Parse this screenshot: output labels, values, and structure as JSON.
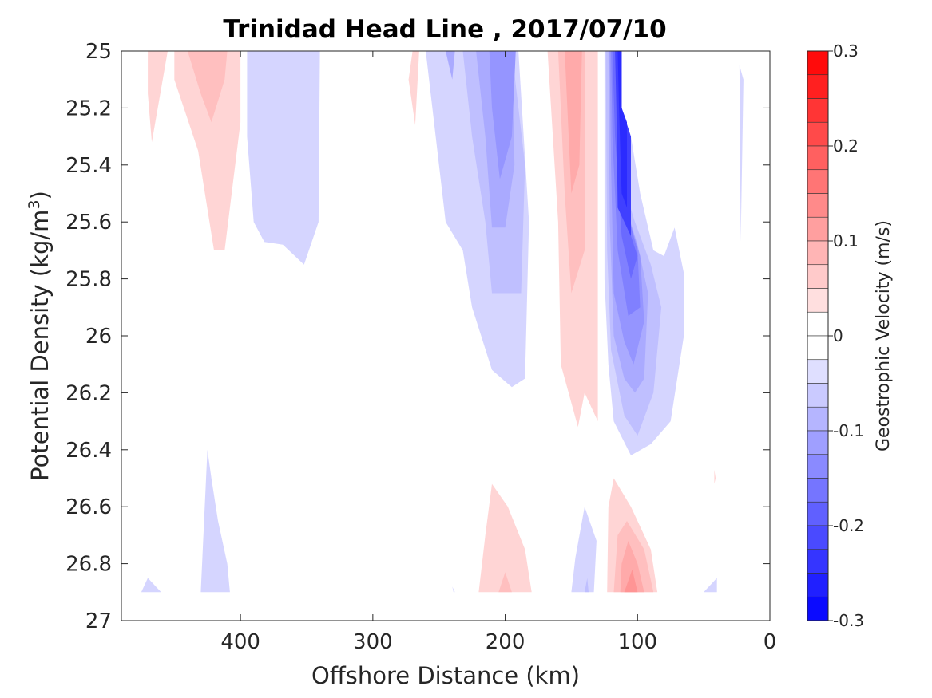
{
  "chart_data": {
    "type": "heatmap",
    "subtype": "filled-contour",
    "title": "Trinidad Head Line , 2017/07/10",
    "xlabel": "Offshore Distance (km)",
    "ylabel_main": "Potential Density (kg/m",
    "ylabel_sup": "3",
    "ylabel_tail": ")",
    "xlim": [
      490,
      0
    ],
    "x_reversed": true,
    "ylim": [
      25,
      27
    ],
    "y_reversed": true,
    "x_ticks": [
      400,
      300,
      200,
      100,
      0
    ],
    "x_tick_labels": [
      "400",
      "300",
      "200",
      "100",
      "0"
    ],
    "y_ticks": [
      25,
      25.2,
      25.4,
      25.6,
      25.8,
      26,
      26.2,
      26.4,
      26.6,
      26.8,
      27
    ],
    "y_tick_labels": [
      "25",
      "25.2",
      "25.4",
      "25.6",
      "25.8",
      "26",
      "26.2",
      "26.4",
      "26.6",
      "26.8",
      "27"
    ],
    "colorbar": {
      "label": "Geostrophic Velocity (m/s)",
      "min": -0.3,
      "max": 0.3,
      "levels": 24,
      "ticks": [
        0.3,
        0.2,
        0.1,
        0,
        -0.1,
        -0.2,
        -0.3
      ],
      "tick_labels": [
        "0.3",
        "0.2",
        "0.1",
        "0",
        "-0.1",
        "-0.2",
        "-0.3"
      ],
      "color_min": "#0000ff",
      "color_zero": "#ffffff",
      "color_max": "#ff0000"
    },
    "regions": [
      {
        "v": 0.05,
        "pts": [
          [
            470,
            25
          ],
          [
            455,
            25
          ],
          [
            467,
            25.32
          ],
          [
            470,
            25.15
          ]
        ]
      },
      {
        "v": 0.05,
        "pts": [
          [
            450,
            25
          ],
          [
            400,
            25
          ],
          [
            400,
            25.25
          ],
          [
            412,
            25.7
          ],
          [
            420,
            25.7
          ],
          [
            432,
            25.35
          ],
          [
            450,
            25.1
          ]
        ]
      },
      {
        "v": 0.075,
        "pts": [
          [
            440,
            25
          ],
          [
            410,
            25
          ],
          [
            412,
            25.1
          ],
          [
            422,
            25.25
          ],
          [
            430,
            25.15
          ]
        ]
      },
      {
        "v": 0.05,
        "pts": [
          [
            270,
            25
          ],
          [
            265,
            25
          ],
          [
            268,
            25.26
          ],
          [
            273,
            25.1
          ]
        ]
      },
      {
        "v": -0.05,
        "pts": [
          [
            395,
            25
          ],
          [
            340,
            25
          ],
          [
            341,
            25.6
          ],
          [
            352,
            25.75
          ],
          [
            368,
            25.68
          ],
          [
            382,
            25.67
          ],
          [
            390,
            25.6
          ],
          [
            395,
            25.3
          ]
        ]
      },
      {
        "v": -0.05,
        "pts": [
          [
            260,
            25
          ],
          [
            190,
            25
          ],
          [
            182,
            25.6
          ],
          [
            185,
            26.15
          ],
          [
            195,
            26.18
          ],
          [
            210,
            26.12
          ],
          [
            225,
            25.9
          ],
          [
            232,
            25.7
          ],
          [
            245,
            25.6
          ],
          [
            255,
            25.2
          ]
        ]
      },
      {
        "v": -0.075,
        "pts": [
          [
            232,
            25
          ],
          [
            195,
            25
          ],
          [
            185,
            25.4
          ],
          [
            188,
            25.85
          ],
          [
            210,
            25.85
          ],
          [
            215,
            25.6
          ],
          [
            225,
            25.3
          ]
        ]
      },
      {
        "v": -0.1,
        "pts": [
          [
            222,
            25
          ],
          [
            195,
            25
          ],
          [
            193,
            25.4
          ],
          [
            200,
            25.62
          ],
          [
            210,
            25.62
          ],
          [
            215,
            25.3
          ]
        ]
      },
      {
        "v": -0.125,
        "pts": [
          [
            212,
            25
          ],
          [
            192,
            25
          ],
          [
            195,
            25.3
          ],
          [
            204,
            25.45
          ],
          [
            210,
            25.2
          ]
        ]
      },
      {
        "v": -0.1,
        "pts": [
          [
            245,
            25
          ],
          [
            238,
            25
          ],
          [
            240,
            25.1
          ]
        ]
      },
      {
        "v": 0.05,
        "pts": [
          [
            168,
            25
          ],
          [
            130,
            25
          ],
          [
            130,
            26.3
          ],
          [
            140,
            26.2
          ],
          [
            145,
            26.32
          ],
          [
            158,
            26.1
          ],
          [
            160,
            25.6
          ]
        ]
      },
      {
        "v": 0.075,
        "pts": [
          [
            160,
            25
          ],
          [
            140,
            25
          ],
          [
            140,
            25.7
          ],
          [
            150,
            25.85
          ],
          [
            155,
            25.5
          ]
        ]
      },
      {
        "v": 0.1,
        "pts": [
          [
            155,
            25
          ],
          [
            142,
            25
          ],
          [
            144,
            25.4
          ],
          [
            150,
            25.5
          ]
        ]
      },
      {
        "v": -0.05,
        "pts": [
          [
            125,
            25
          ],
          [
            112,
            25
          ],
          [
            112,
            25.2
          ],
          [
            105,
            25.3
          ],
          [
            98,
            25.5
          ],
          [
            88,
            25.7
          ],
          [
            80,
            25.72
          ],
          [
            72,
            25.62
          ],
          [
            65,
            25.78
          ],
          [
            65,
            26
          ],
          [
            75,
            26.3
          ],
          [
            90,
            26.38
          ],
          [
            105,
            26.42
          ],
          [
            118,
            26.3
          ],
          [
            122,
            26.1
          ],
          [
            125,
            25.8
          ]
        ]
      },
      {
        "v": -0.075,
        "pts": [
          [
            124,
            25
          ],
          [
            113,
            25
          ],
          [
            112,
            25.45
          ],
          [
            102,
            25.6
          ],
          [
            90,
            25.75
          ],
          [
            82,
            25.9
          ],
          [
            88,
            26.2
          ],
          [
            100,
            26.35
          ],
          [
            110,
            26.28
          ],
          [
            120,
            26.05
          ],
          [
            123,
            25.7
          ]
        ]
      },
      {
        "v": -0.1,
        "pts": [
          [
            122,
            25
          ],
          [
            113,
            25
          ],
          [
            112,
            25.5
          ],
          [
            100,
            25.68
          ],
          [
            92,
            25.85
          ],
          [
            95,
            26.15
          ],
          [
            102,
            26.2
          ],
          [
            110,
            26.15
          ],
          [
            118,
            26
          ],
          [
            121,
            25.6
          ]
        ]
      },
      {
        "v": -0.125,
        "pts": [
          [
            121,
            25
          ],
          [
            113,
            25
          ],
          [
            112,
            25.5
          ],
          [
            98,
            25.72
          ],
          [
            95,
            25.95
          ],
          [
            103,
            26.1
          ],
          [
            110,
            26.02
          ],
          [
            118,
            25.85
          ],
          [
            120,
            25.4
          ]
        ]
      },
      {
        "v": -0.15,
        "pts": [
          [
            120,
            25
          ],
          [
            113,
            25
          ],
          [
            112,
            25.5
          ],
          [
            100,
            25.7
          ],
          [
            98,
            25.9
          ],
          [
            107,
            25.93
          ],
          [
            115,
            25.7
          ],
          [
            119,
            25.3
          ]
        ]
      },
      {
        "v": -0.175,
        "pts": [
          [
            119,
            25
          ],
          [
            113,
            25
          ],
          [
            112,
            25.55
          ],
          [
            100,
            25.72
          ],
          [
            105,
            25.8
          ],
          [
            112,
            25.65
          ],
          [
            117,
            25.3
          ]
        ]
      },
      {
        "v": -0.225,
        "pts": [
          [
            117,
            25
          ],
          [
            112,
            25
          ],
          [
            112,
            25.2
          ],
          [
            105,
            25.3
          ],
          [
            105,
            25.65
          ],
          [
            115,
            25.55
          ],
          [
            116,
            25.2
          ]
        ]
      },
      {
        "v": -0.25,
        "pts": [
          [
            115,
            25
          ],
          [
            112,
            25
          ],
          [
            112,
            25.2
          ],
          [
            108,
            25.25
          ],
          [
            108,
            25.55
          ],
          [
            112,
            25.5
          ],
          [
            114,
            25.2
          ]
        ]
      },
      {
        "v": -0.05,
        "pts": [
          [
            23,
            25.05
          ],
          [
            22,
            25.67
          ],
          [
            20,
            25.1
          ]
        ]
      },
      {
        "v": -0.05,
        "pts": [
          [
            425,
            26.4
          ],
          [
            430,
            26.9
          ],
          [
            408,
            26.9
          ],
          [
            410,
            26.8
          ],
          [
            417,
            26.65
          ],
          [
            422,
            26.5
          ]
        ]
      },
      {
        "v": -0.05,
        "pts": [
          [
            470,
            26.85
          ],
          [
            475,
            26.9
          ],
          [
            460,
            26.9
          ]
        ]
      },
      {
        "v": -0.05,
        "pts": [
          [
            240,
            26.88
          ],
          [
            239,
            26.9
          ],
          [
            238,
            26.9
          ]
        ]
      },
      {
        "v": 0.05,
        "pts": [
          [
            220,
            26.9
          ],
          [
            180,
            26.9
          ],
          [
            185,
            26.75
          ],
          [
            198,
            26.6
          ],
          [
            210,
            26.52
          ],
          [
            215,
            26.7
          ]
        ]
      },
      {
        "v": 0.075,
        "pts": [
          [
            205,
            26.9
          ],
          [
            195,
            26.9
          ],
          [
            200,
            26.83
          ]
        ]
      },
      {
        "v": -0.05,
        "pts": [
          [
            150,
            26.9
          ],
          [
            133,
            26.9
          ],
          [
            131,
            26.72
          ],
          [
            140,
            26.6
          ],
          [
            147,
            26.78
          ]
        ]
      },
      {
        "v": -0.075,
        "pts": [
          [
            140,
            26.9
          ],
          [
            137,
            26.9
          ],
          [
            138,
            26.85
          ]
        ]
      },
      {
        "v": 0.05,
        "pts": [
          [
            123,
            26.9
          ],
          [
            85,
            26.9
          ],
          [
            90,
            26.75
          ],
          [
            105,
            26.6
          ],
          [
            118,
            26.5
          ],
          [
            122,
            26.6
          ]
        ]
      },
      {
        "v": 0.075,
        "pts": [
          [
            118,
            26.9
          ],
          [
            88,
            26.9
          ],
          [
            95,
            26.75
          ],
          [
            108,
            26.65
          ],
          [
            115,
            26.7
          ]
        ]
      },
      {
        "v": 0.1,
        "pts": [
          [
            113,
            26.9
          ],
          [
            95,
            26.9
          ],
          [
            100,
            26.8
          ],
          [
            107,
            26.72
          ],
          [
            112,
            26.8
          ]
        ]
      },
      {
        "v": 0.125,
        "pts": [
          [
            110,
            26.9
          ],
          [
            100,
            26.9
          ],
          [
            104,
            26.82
          ]
        ]
      },
      {
        "v": -0.05,
        "pts": [
          [
            50,
            26.9
          ],
          [
            40,
            26.9
          ],
          [
            40,
            26.85
          ]
        ]
      },
      {
        "v": 0.05,
        "pts": [
          [
            42,
            26.47
          ],
          [
            42,
            26.52
          ],
          [
            41,
            26.5
          ]
        ]
      }
    ]
  }
}
